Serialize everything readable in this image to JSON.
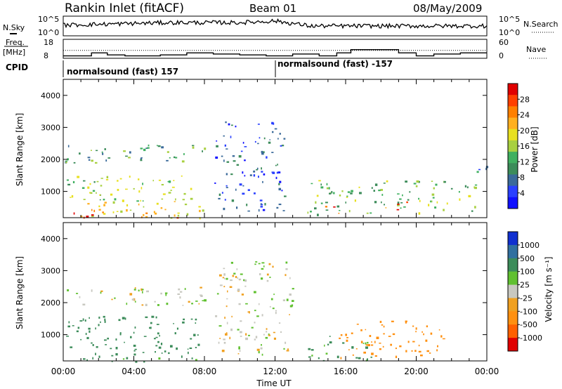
{
  "header": {
    "station": "Rankin Inlet (fitACF)",
    "beam": "Beam 01",
    "date": "08/May/2009"
  },
  "nsky_panel": {
    "left_label": "N.Sky",
    "right_label": "N.Search",
    "left_ticks": [
      "10^5",
      "10^0"
    ],
    "right_ticks": [
      "10^5",
      "10^0"
    ]
  },
  "freq_panel": {
    "left_label_1": "Freq.",
    "left_label_2": "[MHz]",
    "right_label": "Nave",
    "left_ticks": [
      "18",
      "8"
    ],
    "right_ticks": [
      "60",
      "0"
    ]
  },
  "cpid": {
    "label": "CPID",
    "program_1": "normalsound (fast) 157",
    "program_2": "normalsound (fast) -157"
  },
  "x_axis": {
    "label": "Time UT",
    "ticks": [
      "00:00",
      "04:00",
      "08:00",
      "12:00",
      "16:00",
      "20:00",
      "00:00"
    ]
  },
  "power_panel": {
    "ylabel": "Slant Range [km]",
    "yticks": [
      "4000",
      "3000",
      "2000",
      "1000"
    ],
    "colorbar_label": "Power [dB]",
    "colorbar_ticks": [
      "28",
      "24",
      "20",
      "16",
      "12",
      "8",
      "4"
    ]
  },
  "velocity_panel": {
    "ylabel": "Slant Range [km]",
    "yticks": [
      "4000",
      "3000",
      "2000",
      "1000"
    ],
    "colorbar_label": "Velocity [m s⁻¹]",
    "colorbar_ticks": [
      "1000",
      "500",
      "100",
      "25",
      "-25",
      "-100",
      "-500",
      "-1000"
    ]
  },
  "chart_data": [
    {
      "type": "heatmap",
      "title": "Power",
      "xlabel": "Time UT",
      "ylabel": "Slant Range [km]",
      "xlim": [
        0,
        24
      ],
      "ylim": [
        180,
        4500
      ],
      "colorbar": {
        "label": "Power [dB]",
        "range": [
          0,
          32
        ],
        "colors": [
          "#1010ff",
          "#2a40ff",
          "#3a6a9a",
          "#3c8c5a",
          "#40b060",
          "#a8d040",
          "#e8e020",
          "#ffb020",
          "#ff8000",
          "#ff4000",
          "#e00000"
        ]
      },
      "echo_regions": [
        {
          "t_start": 0.0,
          "t_end": 7.9,
          "r_start": 180,
          "r_end": 700,
          "power": 20
        },
        {
          "t_start": 0.0,
          "t_end": 7.5,
          "r_start": 700,
          "r_end": 1500,
          "power": 15
        },
        {
          "t_start": 0.0,
          "t_end": 8.0,
          "r_start": 1900,
          "r_end": 2500,
          "power": 12
        },
        {
          "t_start": 0.0,
          "t_end": 2.8,
          "r_start": 180,
          "r_end": 350,
          "power": 28
        },
        {
          "t_start": 5.3,
          "t_end": 6.5,
          "r_start": 180,
          "r_end": 350,
          "power": 28
        },
        {
          "t_start": 8.5,
          "t_end": 12.5,
          "r_start": 400,
          "r_end": 3200,
          "power": 6
        },
        {
          "t_start": 13.8,
          "t_end": 23.5,
          "r_start": 300,
          "r_end": 1400,
          "power": 14
        },
        {
          "t_start": 14.2,
          "t_end": 15.6,
          "r_start": 300,
          "r_end": 600,
          "power": 28
        },
        {
          "t_start": 18.0,
          "t_end": 19.5,
          "r_start": 400,
          "r_end": 700,
          "power": 26
        },
        {
          "t_start": 23.0,
          "t_end": 24.0,
          "r_start": 1500,
          "r_end": 1900,
          "power": 8
        }
      ]
    },
    {
      "type": "heatmap",
      "title": "Velocity",
      "xlabel": "Time UT",
      "ylabel": "Slant Range [km]",
      "xlim": [
        0,
        24
      ],
      "ylim": [
        180,
        4500
      ],
      "colorbar": {
        "label": "Velocity [m s⁻¹]",
        "boundaries": [
          -1000,
          -500,
          -100,
          -25,
          25,
          100,
          500,
          1000
        ],
        "colors": [
          "#e00000",
          "#ff6000",
          "#ff9010",
          "#f0a020",
          "#c8c8c0",
          "#60c030",
          "#3c8c5a",
          "#3070a0",
          "#1030d0"
        ]
      },
      "echo_regions": [
        {
          "t_start": 0.0,
          "t_end": 8.0,
          "r_start": 1900,
          "r_end": 2500,
          "velocity": 0
        },
        {
          "t_start": 0.0,
          "t_end": 7.8,
          "r_start": 500,
          "r_end": 1600,
          "velocity": 300
        },
        {
          "t_start": 0.0,
          "t_end": 7.5,
          "r_start": 180,
          "r_end": 500,
          "velocity": 150
        },
        {
          "t_start": 8.5,
          "t_end": 13.0,
          "r_start": 400,
          "r_end": 3300,
          "velocity": 0
        },
        {
          "t_start": 13.8,
          "t_end": 17.5,
          "r_start": 180,
          "r_end": 1000,
          "velocity": 100
        },
        {
          "t_start": 15.5,
          "t_end": 21.5,
          "r_start": 300,
          "r_end": 1500,
          "velocity": -300
        }
      ]
    },
    {
      "type": "line",
      "title": "N.Sky / N.Search",
      "series": [
        {
          "name": "N.Sky",
          "x": [
            0,
            2,
            4,
            6,
            8,
            10,
            12,
            14,
            16,
            18,
            20,
            22,
            24
          ],
          "y": [
            0.55,
            0.6,
            0.65,
            0.7,
            0.7,
            0.7,
            0.8,
            0.5,
            0.5,
            0.5,
            0.5,
            0.5,
            0.5
          ]
        }
      ]
    },
    {
      "type": "line",
      "title": "Freq / Nave",
      "series": [
        {
          "name": "Freq.",
          "x": [
            0,
            1.2,
            1.6,
            2.5,
            3.5,
            5.5,
            7,
            8.5,
            10,
            11.5,
            13,
            14.5,
            15.5,
            16.3,
            19,
            20,
            21,
            22.5,
            24
          ],
          "y": [
            8.6,
            8.6,
            10.5,
            9.2,
            8.6,
            9.2,
            10.5,
            9.8,
            9.2,
            8.6,
            9.8,
            8.6,
            10.5,
            12.5,
            10.5,
            8.6,
            9.8,
            10.5,
            10.5
          ]
        },
        {
          "name": "Nave",
          "x": [
            0,
            24
          ],
          "y": [
            24,
            24
          ]
        }
      ]
    }
  ]
}
